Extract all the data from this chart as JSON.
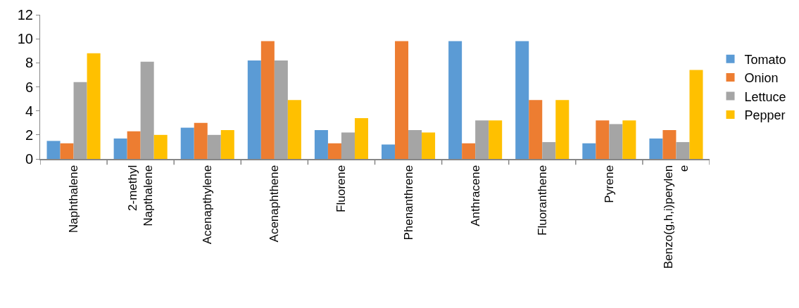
{
  "chart_data": {
    "type": "bar",
    "categories": [
      "Naphthalene",
      "2-methyl Napthalene",
      "Acenapthylene",
      "Acenaphthene",
      "Fluorene",
      "Phenanthrene",
      "Anthracene",
      "Fluoranthene",
      "Pyrene",
      "Benzo(g,h,i)perylene"
    ],
    "series": [
      {
        "name": "Tomato",
        "color": "#5b9bd5",
        "values": [
          1.5,
          1.7,
          2.6,
          8.2,
          2.4,
          1.2,
          9.8,
          9.8,
          1.3,
          1.7
        ]
      },
      {
        "name": "Onion",
        "color": "#ed7d31",
        "values": [
          1.3,
          2.3,
          3.0,
          9.8,
          1.3,
          9.8,
          1.3,
          4.9,
          3.2,
          2.4
        ]
      },
      {
        "name": "Lettuce",
        "color": "#a5a5a5",
        "values": [
          6.4,
          8.1,
          2.0,
          8.2,
          2.2,
          2.4,
          3.2,
          1.4,
          2.9,
          1.4
        ]
      },
      {
        "name": "Pepper",
        "color": "#ffc000",
        "values": [
          8.8,
          2.0,
          2.4,
          4.9,
          3.4,
          2.2,
          3.2,
          4.9,
          3.2,
          7.4
        ]
      }
    ],
    "ylim": [
      0,
      12
    ],
    "yticks": [
      0,
      2,
      4,
      6,
      8,
      10,
      12
    ],
    "grid": false,
    "legend": "right"
  }
}
